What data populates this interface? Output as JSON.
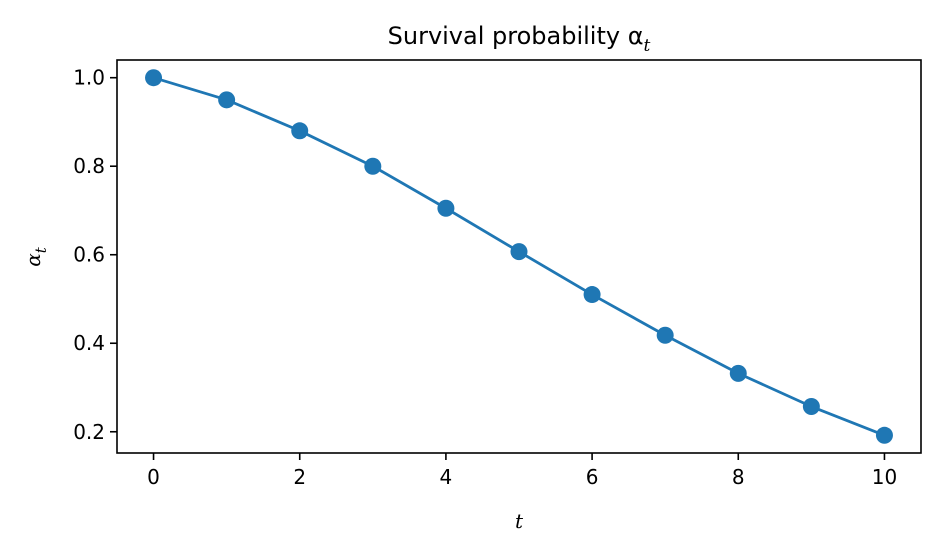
{
  "chart_data": {
    "type": "line",
    "title": "Survival probability α",
    "title_subscript": "t",
    "xlabel": "t",
    "ylabel": "α",
    "ylabel_subscript": "t",
    "x": [
      0,
      1,
      2,
      3,
      4,
      5,
      6,
      7,
      8,
      9,
      10
    ],
    "series": [
      {
        "values": [
          1.0,
          0.95,
          0.88,
          0.8,
          0.705,
          0.607,
          0.51,
          0.418,
          0.332,
          0.257,
          0.192
        ],
        "color": "#1f77b4",
        "marker": "circle"
      }
    ],
    "xlim": [
      -0.5,
      10.5
    ],
    "ylim": [
      0.152,
      1.04
    ],
    "xticks": [
      "0",
      "2",
      "4",
      "6",
      "8",
      "10"
    ],
    "yticks": [
      "0.2",
      "0.4",
      "0.6",
      "0.8",
      "1.0"
    ],
    "grid": false,
    "legend": "none"
  }
}
